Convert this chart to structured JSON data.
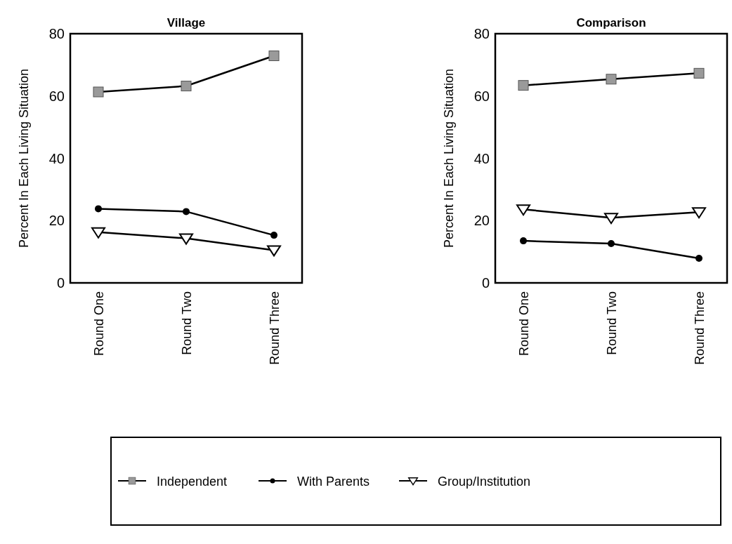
{
  "chart_data": [
    {
      "type": "line",
      "title": "Village",
      "ylabel": "Percent In Each Living Situation",
      "categories": [
        "Round One",
        "Round Two",
        "Round Three"
      ],
      "ylim": [
        0,
        80
      ],
      "yticks": [
        0,
        20,
        40,
        60,
        80
      ],
      "legend": "bottom",
      "series": [
        {
          "name": "Independent",
          "color": "#000000",
          "marker": "square",
          "values": [
            61.3,
            63.2,
            72.9
          ]
        },
        {
          "name": "With Parents",
          "color": "#000000",
          "marker": "circle",
          "values": [
            23.8,
            22.9,
            15.3
          ]
        },
        {
          "name": "Group/Institution",
          "color": "#000000",
          "marker": "triangle",
          "values": [
            16.3,
            14.3,
            10.5
          ]
        }
      ]
    },
    {
      "type": "line",
      "title": "Comparison",
      "ylabel": "Percent In Each Living Situation",
      "categories": [
        "Round One",
        "Round Two",
        "Round Three"
      ],
      "ylim": [
        0,
        80
      ],
      "yticks": [
        0,
        20,
        40,
        60,
        80
      ],
      "legend": "bottom",
      "series": [
        {
          "name": "Independent",
          "color": "#000000",
          "marker": "square",
          "values": [
            63.4,
            65.4,
            67.3
          ]
        },
        {
          "name": "With Parents",
          "color": "#000000",
          "marker": "circle",
          "values": [
            13.5,
            12.6,
            7.9
          ]
        },
        {
          "name": "Group/Institution",
          "color": "#000000",
          "marker": "triangle",
          "values": [
            23.6,
            20.9,
            22.7
          ]
        }
      ]
    }
  ]
}
